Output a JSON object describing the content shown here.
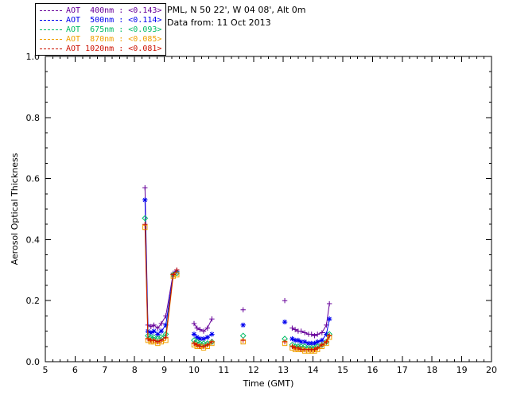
{
  "header": {
    "station_line": "PML, N 50 22', W 04 08', Alt 0m",
    "date_line": "Data from: 11 Oct 2013"
  },
  "legend": {
    "items": [
      {
        "label": "AOT  400nm : <0.143>",
        "color": "#660099"
      },
      {
        "label": "AOT  500nm : <0.114>",
        "color": "#0000ee"
      },
      {
        "label": "AOT  675nm : <0.093>",
        "color": "#00bb66"
      },
      {
        "label": "AOT  870nm : <0.085>",
        "color": "#f0a000"
      },
      {
        "label": "AOT 1020nm : <0.081>",
        "color": "#cc1100"
      }
    ]
  },
  "chart_data": {
    "type": "scatter",
    "title": "",
    "xlabel": "Time (GMT)",
    "ylabel": "Aerosol Optical Thickness",
    "xlim": [
      5,
      20
    ],
    "ylim": [
      0.0,
      1.0
    ],
    "xticks": [
      5,
      6,
      7,
      8,
      9,
      10,
      11,
      12,
      13,
      14,
      15,
      16,
      17,
      18,
      19,
      20
    ],
    "xtick_labels": [
      "5",
      "6",
      "7",
      "8",
      "9",
      "10",
      "11",
      "12",
      "13",
      "14",
      "15",
      "16",
      "17",
      "18",
      "19",
      "20"
    ],
    "yticks": [
      0.0,
      0.2,
      0.4,
      0.6,
      0.8,
      1.0
    ],
    "ytick_labels": [
      "0.0",
      "0.2",
      "0.4",
      "0.6",
      "0.8",
      "1.0"
    ],
    "x_minor_step": 0.25,
    "y_minor_step": 0.05,
    "legend_position": "top-left",
    "grid": false,
    "series": [
      {
        "name": "AOT 400nm",
        "wavelength": "400nm",
        "color": "#660099",
        "marker": "plus",
        "segments": [
          {
            "t": [
              8.35,
              8.45,
              8.55,
              8.65,
              8.78,
              8.9,
              9.05,
              9.3,
              9.42
            ],
            "v": [
              0.57,
              0.12,
              0.115,
              0.12,
              0.11,
              0.125,
              0.15,
              0.29,
              0.3
            ]
          },
          {
            "t": [
              10.0,
              10.1,
              10.2,
              10.32,
              10.45,
              10.6
            ],
            "v": [
              0.125,
              0.11,
              0.105,
              0.1,
              0.11,
              0.14
            ]
          },
          {
            "t": [
              11.65
            ],
            "v": [
              0.17
            ]
          },
          {
            "t": [
              13.05
            ],
            "v": [
              0.2
            ]
          },
          {
            "t": [
              13.3,
              13.4,
              13.5,
              13.6,
              13.72,
              13.85,
              13.95,
              14.05,
              14.15,
              14.3,
              14.45,
              14.55
            ],
            "v": [
              0.11,
              0.105,
              0.1,
              0.1,
              0.095,
              0.09,
              0.09,
              0.085,
              0.09,
              0.095,
              0.12,
              0.19
            ]
          }
        ]
      },
      {
        "name": "AOT 500nm",
        "wavelength": "500nm",
        "color": "#0000ee",
        "marker": "asterisk",
        "segments": [
          {
            "t": [
              8.35,
              8.45,
              8.55,
              8.65,
              8.78,
              8.9,
              9.05,
              9.3,
              9.42
            ],
            "v": [
              0.53,
              0.1,
              0.095,
              0.1,
              0.09,
              0.1,
              0.12,
              0.285,
              0.295
            ]
          },
          {
            "t": [
              10.0,
              10.1,
              10.2,
              10.32,
              10.45,
              10.6
            ],
            "v": [
              0.09,
              0.08,
              0.075,
              0.075,
              0.08,
              0.09
            ]
          },
          {
            "t": [
              11.65
            ],
            "v": [
              0.12
            ]
          },
          {
            "t": [
              13.05
            ],
            "v": [
              0.13
            ]
          },
          {
            "t": [
              13.3,
              13.4,
              13.5,
              13.6,
              13.72,
              13.85,
              13.95,
              14.05,
              14.15,
              14.3,
              14.45,
              14.55
            ],
            "v": [
              0.075,
              0.07,
              0.07,
              0.065,
              0.065,
              0.06,
              0.06,
              0.06,
              0.065,
              0.07,
              0.09,
              0.14
            ]
          }
        ]
      },
      {
        "name": "AOT 675nm",
        "wavelength": "675nm",
        "color": "#00bb66",
        "marker": "diamond",
        "segments": [
          {
            "t": [
              8.35,
              8.45,
              8.55,
              8.65,
              8.78,
              8.9,
              9.05,
              9.3,
              9.42
            ],
            "v": [
              0.47,
              0.085,
              0.08,
              0.08,
              0.075,
              0.08,
              0.09,
              0.285,
              0.29
            ]
          },
          {
            "t": [
              10.0,
              10.1,
              10.2,
              10.32,
              10.45,
              10.6
            ],
            "v": [
              0.07,
              0.065,
              0.06,
              0.06,
              0.06,
              0.065
            ]
          },
          {
            "t": [
              11.65
            ],
            "v": [
              0.085
            ]
          },
          {
            "t": [
              13.05
            ],
            "v": [
              0.075
            ]
          },
          {
            "t": [
              13.3,
              13.4,
              13.5,
              13.6,
              13.72,
              13.85,
              13.95,
              14.05,
              14.15,
              14.3,
              14.45,
              14.55
            ],
            "v": [
              0.055,
              0.05,
              0.05,
              0.05,
              0.05,
              0.045,
              0.045,
              0.045,
              0.05,
              0.055,
              0.065,
              0.09
            ]
          }
        ]
      },
      {
        "name": "AOT 870nm",
        "wavelength": "870nm",
        "color": "#f0a000",
        "marker": "square",
        "segments": [
          {
            "t": [
              8.35,
              8.45,
              8.55,
              8.65,
              8.78,
              8.9,
              9.05,
              9.3,
              9.42
            ],
            "v": [
              0.44,
              0.07,
              0.065,
              0.065,
              0.06,
              0.065,
              0.07,
              0.28,
              0.285
            ]
          },
          {
            "t": [
              10.0,
              10.1,
              10.2,
              10.32,
              10.45,
              10.6
            ],
            "v": [
              0.055,
              0.05,
              0.05,
              0.045,
              0.05,
              0.06
            ]
          },
          {
            "t": [
              11.65
            ],
            "v": [
              0.065
            ]
          },
          {
            "t": [
              13.05
            ],
            "v": [
              0.06
            ]
          },
          {
            "t": [
              13.3,
              13.4,
              13.5,
              13.6,
              13.72,
              13.85,
              13.95,
              14.05,
              14.15,
              14.3,
              14.45,
              14.55
            ],
            "v": [
              0.045,
              0.04,
              0.04,
              0.04,
              0.035,
              0.035,
              0.035,
              0.035,
              0.04,
              0.05,
              0.06,
              0.08
            ]
          }
        ]
      },
      {
        "name": "AOT 1020nm",
        "wavelength": "1020nm",
        "color": "#cc1100",
        "marker": "plus",
        "segments": [
          {
            "t": [
              8.35,
              8.45,
              8.55,
              8.65,
              8.78,
              8.9,
              9.05,
              9.3,
              9.42
            ],
            "v": [
              0.45,
              0.075,
              0.07,
              0.07,
              0.065,
              0.07,
              0.08,
              0.285,
              0.3
            ]
          },
          {
            "t": [
              10.0,
              10.1,
              10.2,
              10.32,
              10.45,
              10.6
            ],
            "v": [
              0.06,
              0.055,
              0.05,
              0.05,
              0.055,
              0.065
            ]
          },
          {
            "t": [
              11.65
            ],
            "v": [
              0.07
            ]
          },
          {
            "t": [
              13.05
            ],
            "v": [
              0.065
            ]
          },
          {
            "t": [
              13.3,
              13.4,
              13.5,
              13.6,
              13.72,
              13.85,
              13.95,
              14.05,
              14.15,
              14.3,
              14.45,
              14.55
            ],
            "v": [
              0.05,
              0.045,
              0.045,
              0.04,
              0.04,
              0.04,
              0.04,
              0.04,
              0.045,
              0.055,
              0.065,
              0.085
            ]
          }
        ]
      }
    ]
  }
}
